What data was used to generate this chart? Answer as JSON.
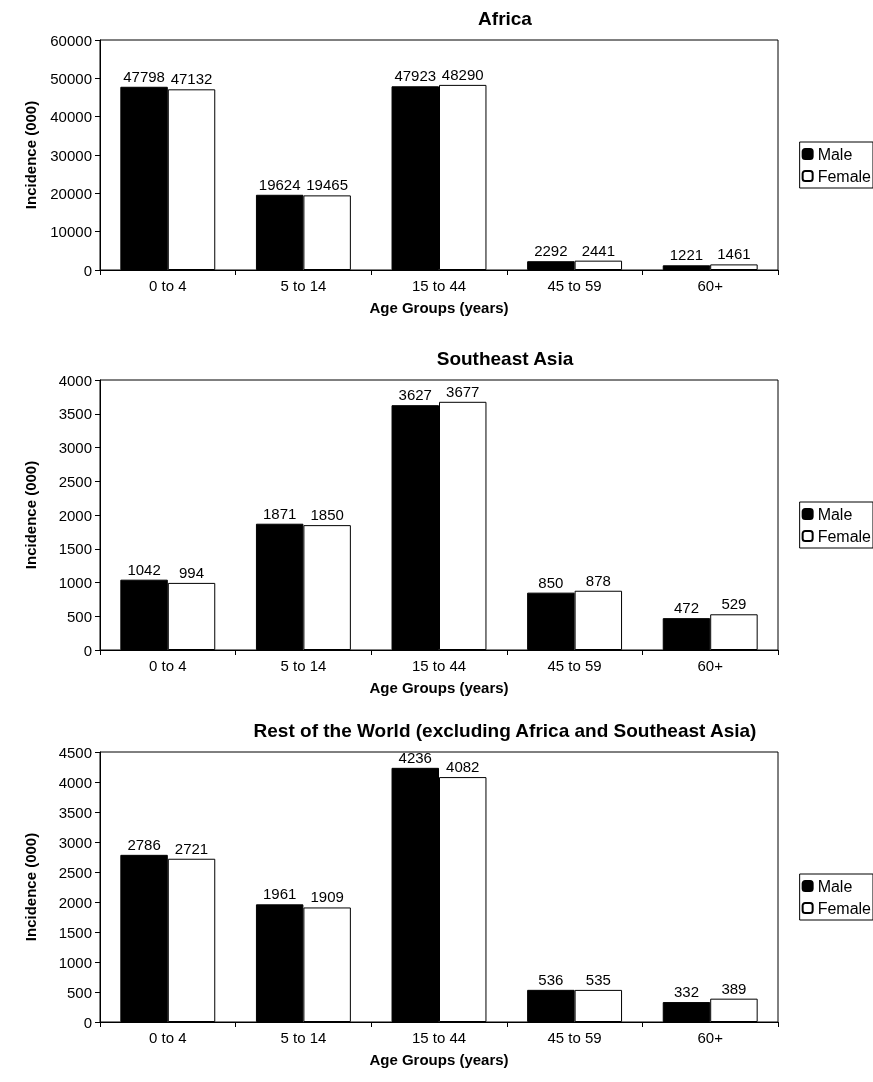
{
  "chart_data": [
    {
      "type": "bar",
      "title": "Africa",
      "xlabel": "Age Groups (years)",
      "ylabel": "Incidence (000)",
      "categories": [
        "0 to 4",
        "5 to 14",
        "15 to 44",
        "45 to 59",
        "60+"
      ],
      "series": [
        {
          "name": "Male",
          "color": "#000000",
          "values": [
            47798,
            19624,
            47923,
            2292,
            1221
          ]
        },
        {
          "name": "Female",
          "color": "#ffffff",
          "values": [
            47132,
            19465,
            48290,
            2441,
            1461
          ]
        }
      ],
      "ylim": [
        0,
        60000
      ],
      "yticks": [
        0,
        10000,
        20000,
        30000,
        40000,
        50000,
        60000
      ],
      "data_labels": true,
      "legend": "right",
      "grid": false
    },
    {
      "type": "bar",
      "title": "Southeast Asia",
      "xlabel": "Age Groups (years)",
      "ylabel": "Incidence (000)",
      "categories": [
        "0 to 4",
        "5 to 14",
        "15 to 44",
        "45 to 59",
        "60+"
      ],
      "series": [
        {
          "name": "Male",
          "color": "#000000",
          "values": [
            1042,
            1871,
            3627,
            850,
            472
          ]
        },
        {
          "name": "Female",
          "color": "#ffffff",
          "values": [
            994,
            1850,
            3677,
            878,
            529
          ]
        }
      ],
      "ylim": [
        0,
        4000
      ],
      "yticks": [
        0,
        500,
        1000,
        1500,
        2000,
        2500,
        3000,
        3500,
        4000
      ],
      "data_labels": true,
      "legend": "right",
      "grid": false
    },
    {
      "type": "bar",
      "title": "Rest of the World (excluding Africa and Southeast Asia)",
      "xlabel": "Age Groups (years)",
      "ylabel": "Incidence (000)",
      "categories": [
        "0 to 4",
        "5 to 14",
        "15 to 44",
        "45 to 59",
        "60+"
      ],
      "series": [
        {
          "name": "Male",
          "color": "#000000",
          "values": [
            2786,
            1961,
            4236,
            536,
            332
          ]
        },
        {
          "name": "Female",
          "color": "#ffffff",
          "values": [
            2721,
            1909,
            4082,
            535,
            389
          ]
        }
      ],
      "ylim": [
        0,
        4500
      ],
      "yticks": [
        0,
        500,
        1000,
        1500,
        2000,
        2500,
        3000,
        3500,
        4000,
        4500
      ],
      "data_labels": true,
      "legend": "right",
      "grid": false
    }
  ]
}
